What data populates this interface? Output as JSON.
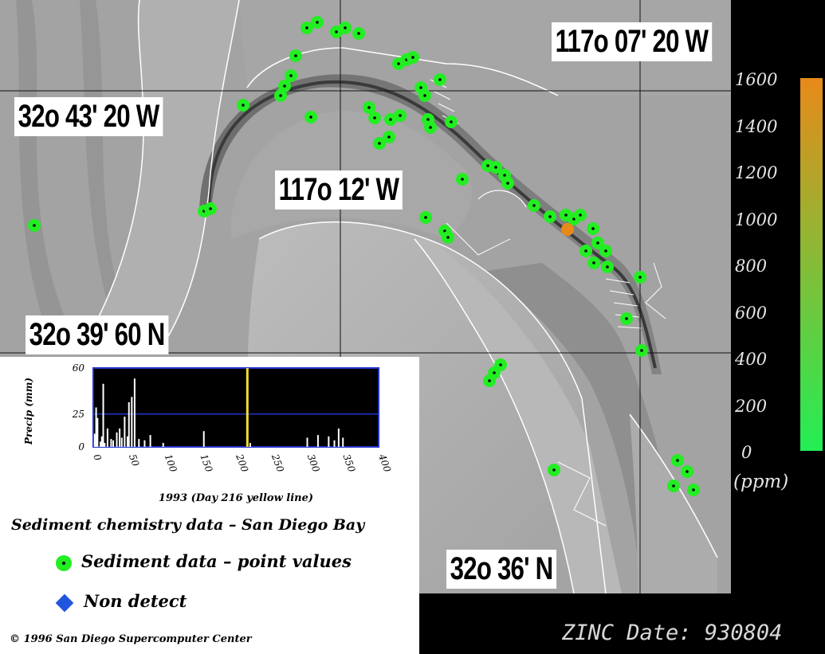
{
  "map": {
    "labels": {
      "lat_top": "32o 43' 20 W",
      "lon_right": "117o 07' 20 W",
      "lon_mid": "117o 12' W",
      "lat_mid": "32o 39' 60 N",
      "lat_bottom": "32o 36' N"
    },
    "colors": {
      "water": "#9d9d9d",
      "land_shaded": "#b4b4b4",
      "point": "#22ee22",
      "point_high": "#e88a1a",
      "nondetect": "#2255dd"
    }
  },
  "precip_chart": {
    "ylabel": "Precip (mm)",
    "xlabel": "1993 (Day 216 yellow line)",
    "y_ticks": [
      "60",
      "25",
      "0"
    ],
    "x_ticks": [
      "0",
      "50",
      "100",
      "150",
      "200",
      "250",
      "300",
      "350",
      "400"
    ],
    "highlight_day": 216
  },
  "legend": {
    "title": "Sediment chemistry data – San Diego Bay",
    "items": [
      {
        "icon": "green-dot-icon",
        "label": "Sediment data – point values"
      },
      {
        "icon": "blue-diamond-icon",
        "label": "Non detect"
      }
    ]
  },
  "copyright": "© 1996 San Diego Supercomputer Center",
  "footer": "ZINC  Date: 930804",
  "colorbar": {
    "ticks": [
      "1600",
      "1400",
      "1200",
      "1000",
      "800",
      "600",
      "400",
      "200",
      "0"
    ],
    "unit": "(ppm)",
    "colors": [
      "#e88a1a",
      "#22ee55"
    ]
  },
  "chart_data": {
    "type": "bar",
    "title": "",
    "xlabel": "1993 (Day 216 yellow line)",
    "ylabel": "Precip (mm)",
    "xlim": [
      0,
      400
    ],
    "ylim": [
      0,
      60
    ],
    "reference_line_y": 25,
    "highlight_x": 216,
    "x": [
      2,
      4,
      6,
      10,
      12,
      14,
      16,
      20,
      25,
      28,
      33,
      37,
      40,
      44,
      48,
      50,
      54,
      58,
      64,
      72,
      80,
      98,
      155,
      220,
      300,
      315,
      330,
      338,
      344,
      350
    ],
    "values": [
      10,
      30,
      22,
      4,
      8,
      48,
      3,
      14,
      6,
      5,
      11,
      14,
      7,
      23,
      8,
      34,
      38,
      52,
      6,
      5,
      9,
      3,
      12,
      3,
      7,
      9,
      8,
      5,
      14,
      7
    ]
  }
}
